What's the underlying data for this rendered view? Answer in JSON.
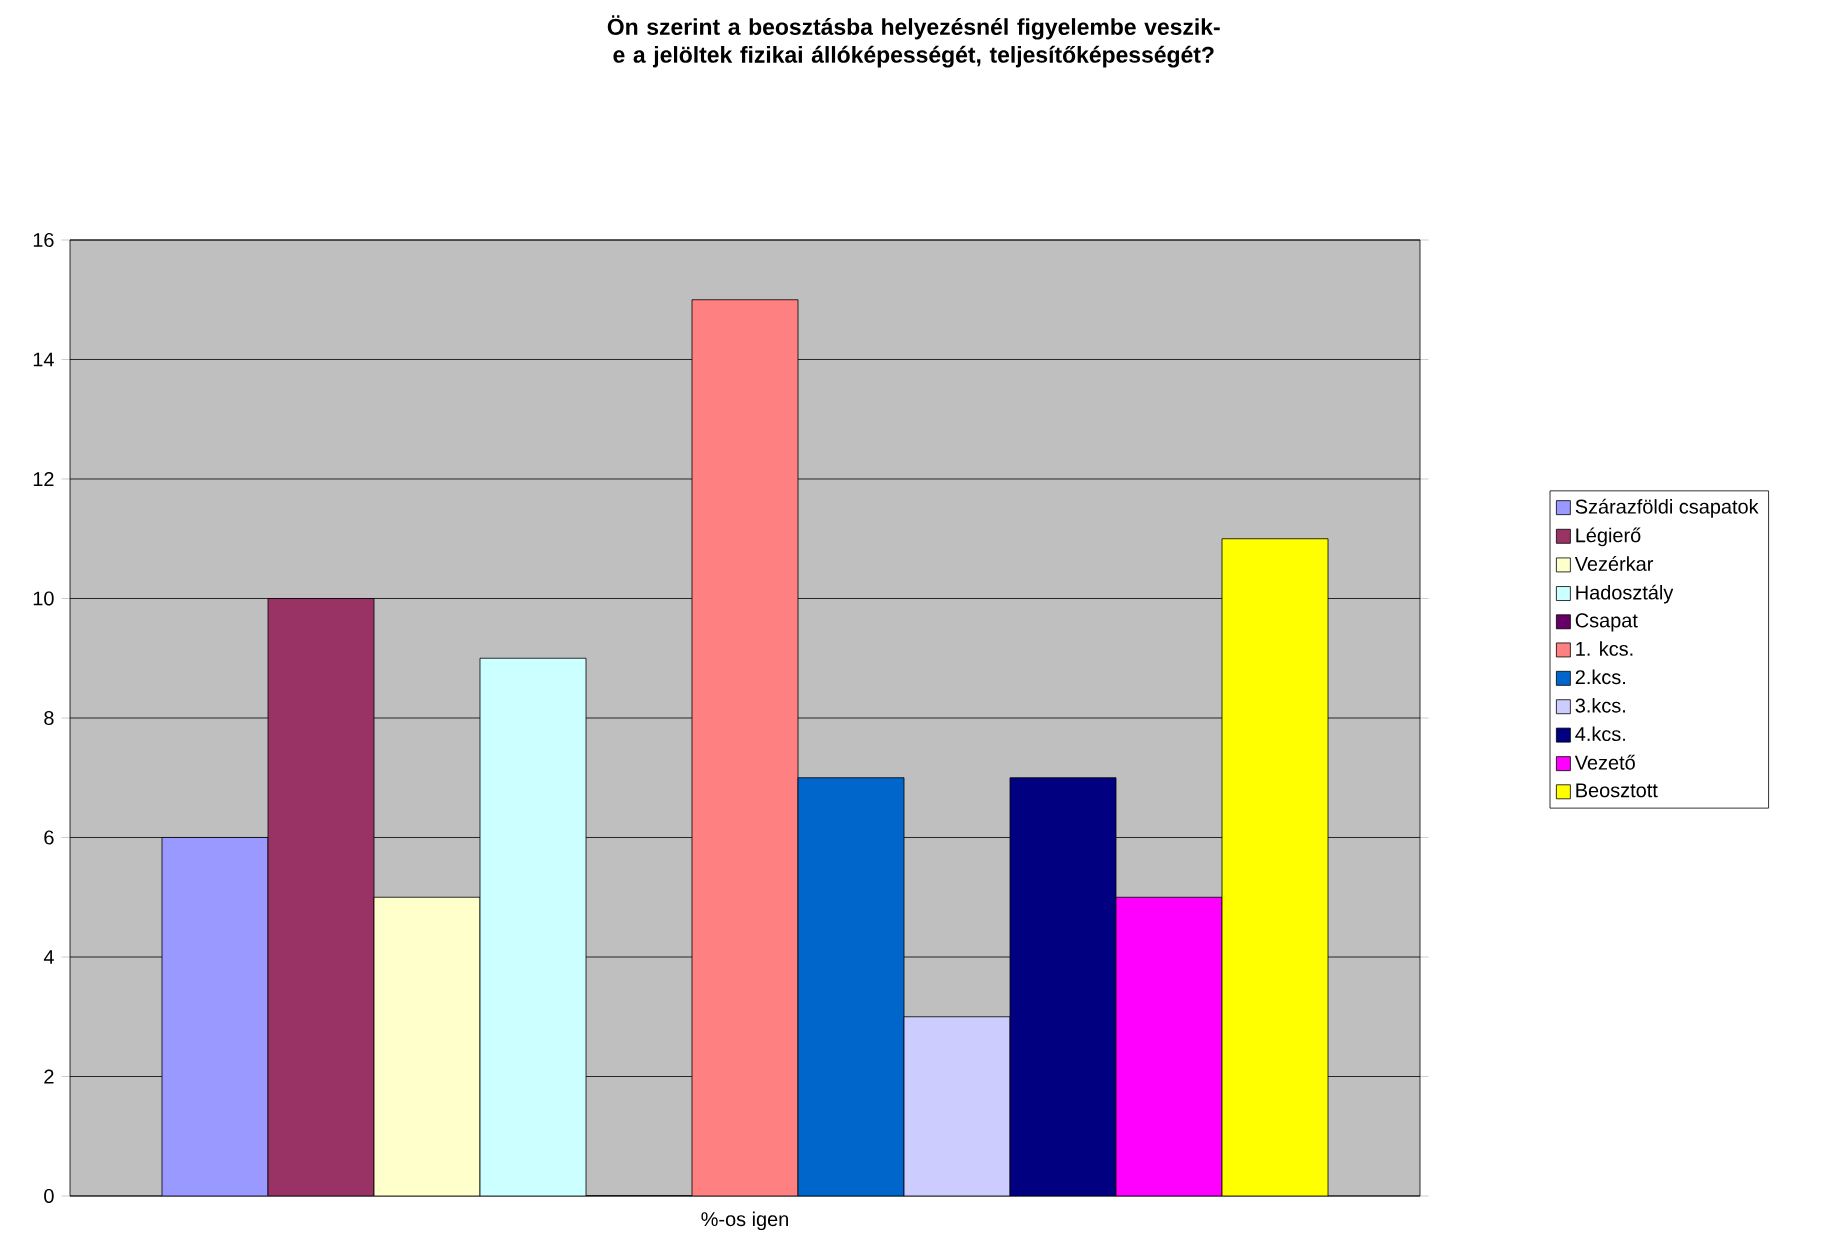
{
  "chart_data": {
    "type": "bar",
    "title": "Ön szerint a beosztásba helyezésnél figyelembe veszik-e a jelöltek fizikai állóképességét, teljesítőképességét?",
    "categories": [
      "%-os igen"
    ],
    "series": [
      {
        "name": "Szárazföldi csapatok",
        "color": "#9999ff",
        "values": [
          6
        ]
      },
      {
        "name": "Légierő",
        "color": "#993366",
        "values": [
          10
        ]
      },
      {
        "name": "Vezérkar",
        "color": "#ffffcc",
        "values": [
          5
        ]
      },
      {
        "name": "Hadosztály",
        "color": "#ccffff",
        "values": [
          9
        ]
      },
      {
        "name": "Csapat",
        "color": "#660066",
        "values": [
          0
        ]
      },
      {
        "name": "1. kcs.",
        "color": "#ff8080",
        "values": [
          15
        ]
      },
      {
        "name": "2.kcs.",
        "color": "#0066cc",
        "values": [
          7
        ]
      },
      {
        "name": "3.kcs.",
        "color": "#ccccff",
        "values": [
          3
        ]
      },
      {
        "name": "4.kcs.",
        "color": "#000080",
        "values": [
          7
        ]
      },
      {
        "name": "Vezető",
        "color": "#ff00ff",
        "values": [
          5
        ]
      },
      {
        "name": "Beosztott",
        "color": "#ffff00",
        "values": [
          11
        ]
      }
    ],
    "ylim": [
      0,
      16
    ],
    "yticks": [
      0,
      2,
      4,
      6,
      8,
      10,
      12,
      14,
      16
    ],
    "grid": "y",
    "legend": "right"
  }
}
